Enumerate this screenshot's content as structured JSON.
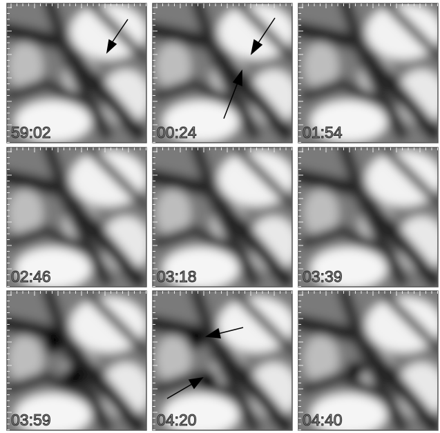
{
  "panels": [
    {
      "label": "59:02"
    },
    {
      "label": "00:24"
    },
    {
      "label": "01:54"
    },
    {
      "label": "02:46"
    },
    {
      "label": "03:18"
    },
    {
      "label": "03:39"
    },
    {
      "label": "03:59"
    },
    {
      "label": "04:20"
    },
    {
      "label": "04:40"
    }
  ]
}
